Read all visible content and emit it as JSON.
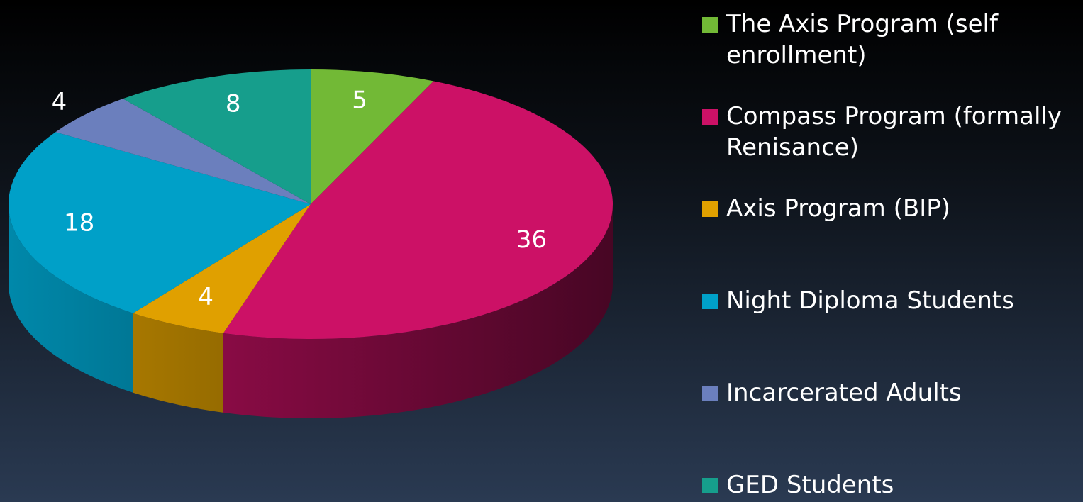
{
  "chart_data": {
    "type": "pie",
    "categories": [
      "The Axis Program (self enrollment)",
      "Compass Program (formally Renisance)",
      "Axis Program (BIP)",
      "Night Diploma Students",
      "Incarcerated Adults",
      "GED Students"
    ],
    "values": [
      5,
      36,
      4,
      18,
      4,
      8
    ],
    "colors": [
      "#72b936",
      "#cc1166",
      "#e0a000",
      "#00a0c8",
      "#6b7fbd",
      "#169e8c"
    ],
    "legend": "right"
  }
}
